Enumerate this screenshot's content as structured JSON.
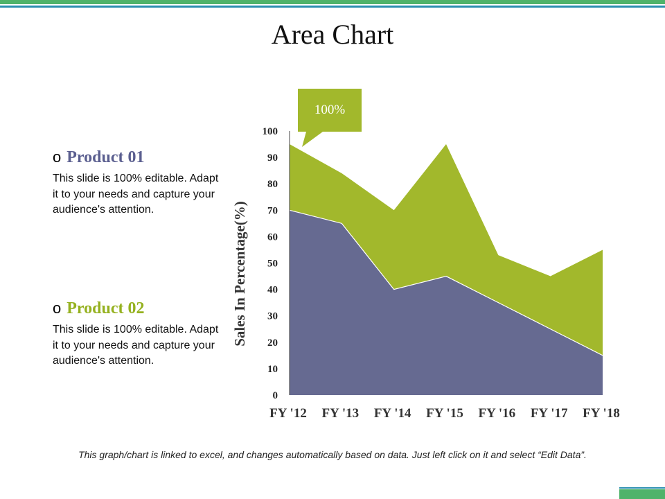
{
  "title": "Area Chart",
  "products": [
    {
      "title": "Product 01",
      "bullet": "o",
      "desc": "This slide is 100% editable. Adapt it to your needs and capture your audience's attention.",
      "color": "#5a5e8f"
    },
    {
      "title": "Product 02",
      "bullet": "o",
      "desc": "This slide is 100% editable. Adapt it to your needs and capture your audience's attention.",
      "color": "#95b11f"
    }
  ],
  "footer": "This graph/chart is linked to excel, and changes automatically based on data. Just left click on it and select “Edit Data”.",
  "colors": {
    "series_green": "#a2b82c",
    "series_purple": "#666a91",
    "brand_green": "#4fb36a",
    "brand_blue": "#2a8fb0"
  },
  "chart_data": {
    "type": "area",
    "stacked": true,
    "title": "",
    "xlabel": "",
    "ylabel": "Sales In Percentage(%)",
    "categories": [
      "FY '12",
      "FY '13",
      "FY '14",
      "FY '15",
      "FY '16",
      "FY '17",
      "FY '18"
    ],
    "series": [
      {
        "values": [
          70,
          65,
          40,
          45,
          35,
          25,
          15
        ]
      },
      {
        "values": [
          25,
          19,
          30,
          50,
          18,
          20,
          40
        ]
      }
    ],
    "ylim": [
      0,
      100
    ],
    "yticks": [
      0,
      10,
      20,
      30,
      40,
      50,
      60,
      70,
      80,
      90,
      100
    ],
    "annotation": {
      "text": "100%",
      "category": "FY '12"
    },
    "grid": false,
    "legend": "none"
  }
}
